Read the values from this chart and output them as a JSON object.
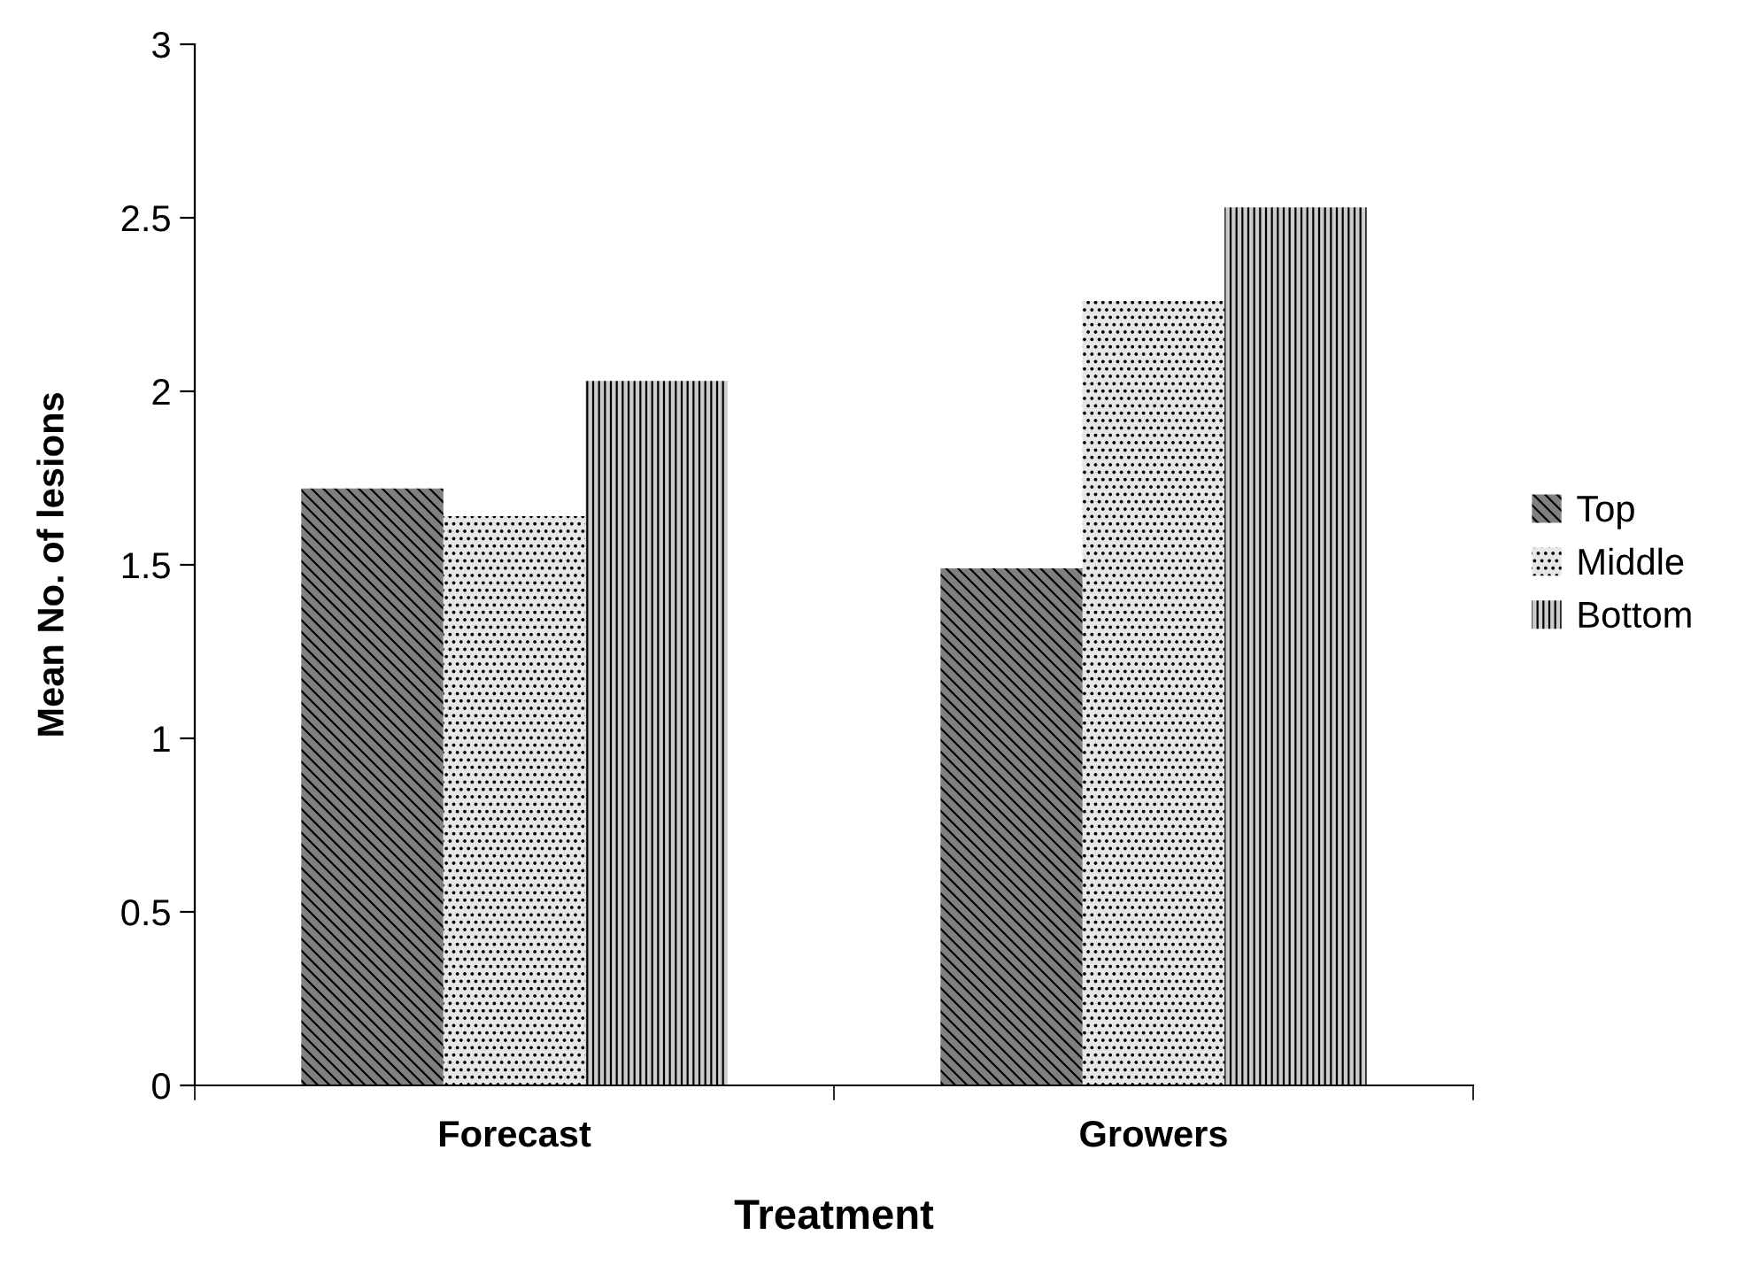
{
  "chart_data": {
    "type": "bar",
    "xlabel": "Treatment",
    "ylabel": "Mean No. of lesions",
    "categories": [
      "Forecast",
      "Growers"
    ],
    "series": [
      {
        "name": "Top",
        "color": "#808080",
        "values": [
          1.72,
          1.49
        ]
      },
      {
        "name": "Middle",
        "color": "#e6e6e6",
        "values": [
          1.64,
          2.26
        ]
      },
      {
        "name": "Bottom",
        "color": "#cccccc",
        "values": [
          2.03,
          2.53
        ]
      }
    ],
    "ylim": [
      0,
      3
    ],
    "yticks": [
      0,
      0.5,
      1,
      1.5,
      2,
      2.5,
      3
    ],
    "grid": false,
    "legend": "right"
  }
}
